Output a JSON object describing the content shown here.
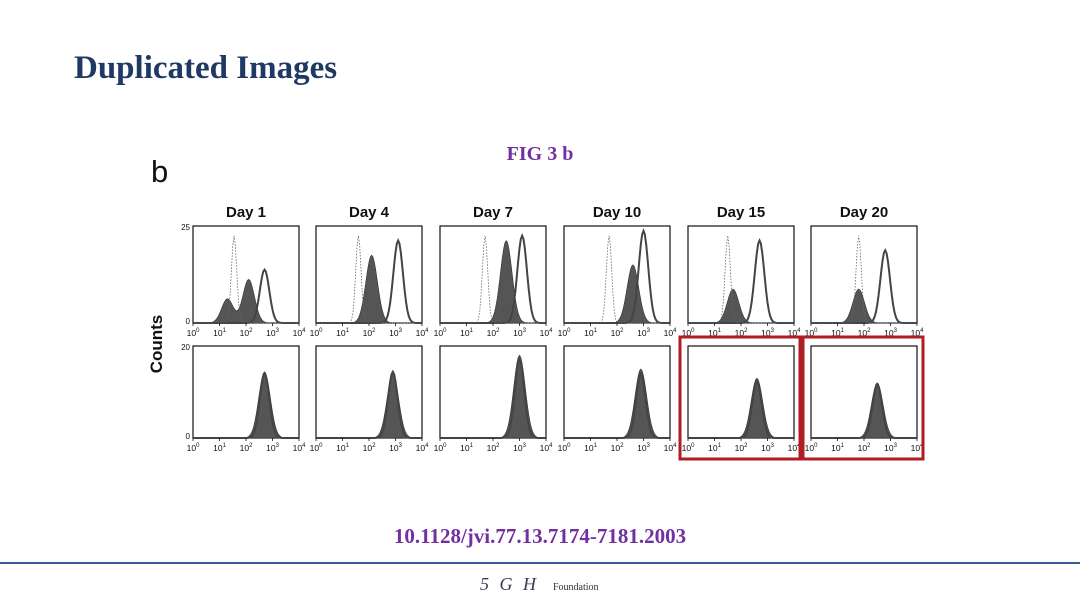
{
  "slide": {
    "title": "Duplicated Images",
    "figure_caption": "FIG 3 b",
    "doi": "10.1128/jvi.77.13.7174-7181.2003"
  },
  "figure": {
    "panel_letter": "b",
    "y_axis_label": "Counts",
    "columns": [
      "Day 1",
      "Day 4",
      "Day 7",
      "Day 10",
      "Day 15",
      "Day 20"
    ],
    "top_row_ymax": "25",
    "bottom_row_ymax": "20",
    "ymin": "0",
    "x_ticks": [
      {
        "base": "10",
        "exp": "0"
      },
      {
        "base": "10",
        "exp": "1"
      },
      {
        "base": "10",
        "exp": "2"
      },
      {
        "base": "10",
        "exp": "3"
      },
      {
        "base": "10",
        "exp": "4"
      }
    ],
    "highlighted_panels": [
      {
        "row": "bottom",
        "column": "Day 15"
      },
      {
        "row": "bottom",
        "column": "Day 20"
      }
    ],
    "highlight_color": "#b01e23",
    "histogram_fill_color": "#555555"
  },
  "footer": {
    "logo_mark": "5 G H",
    "logo_text": "Foundation",
    "rule_color": "#3b5998"
  }
}
